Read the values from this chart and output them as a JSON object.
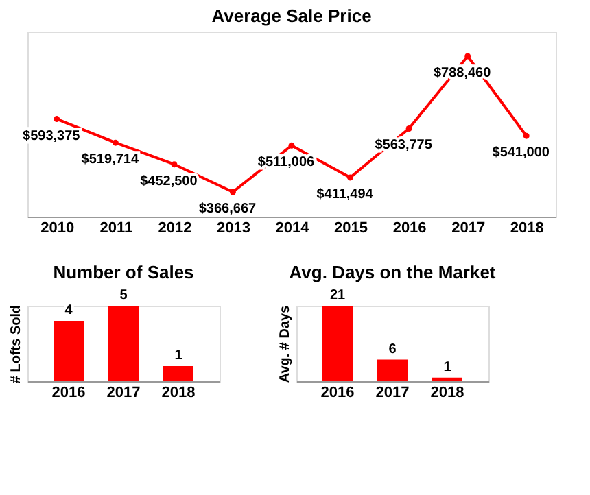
{
  "chart_data": [
    {
      "type": "line",
      "title": "Average Sale Price",
      "categories": [
        "2010",
        "2011",
        "2012",
        "2013",
        "2014",
        "2015",
        "2016",
        "2017",
        "2018"
      ],
      "color": "#ff0000",
      "marker": "circle",
      "data_labels": true,
      "value_labels": [
        "$593,375",
        "$519,714",
        "$452,500",
        "$366,667",
        "$511,006",
        "$411,494",
        "$563,775",
        "$788,460",
        "$541,000"
      ],
      "values": [
        593375,
        519714,
        452500,
        366667,
        511006,
        411494,
        563775,
        788460,
        541000
      ],
      "tick_labels": "x",
      "grid": false
    },
    {
      "type": "bar",
      "title": "Number of Sales",
      "ylabel": "# Lofts Sold",
      "categories": [
        "2016",
        "2017",
        "2018"
      ],
      "values": [
        4,
        5,
        1
      ],
      "color": "#ff0000",
      "data_labels": true,
      "tick_labels": "x",
      "grid": false
    },
    {
      "type": "bar",
      "title": "Avg. Days on the Market",
      "ylabel": "Avg. # Days",
      "categories": [
        "2016",
        "2017",
        "2018"
      ],
      "values": [
        21,
        6,
        1
      ],
      "color": "#ff0000",
      "data_labels": true,
      "tick_labels": "x",
      "grid": false
    }
  ]
}
